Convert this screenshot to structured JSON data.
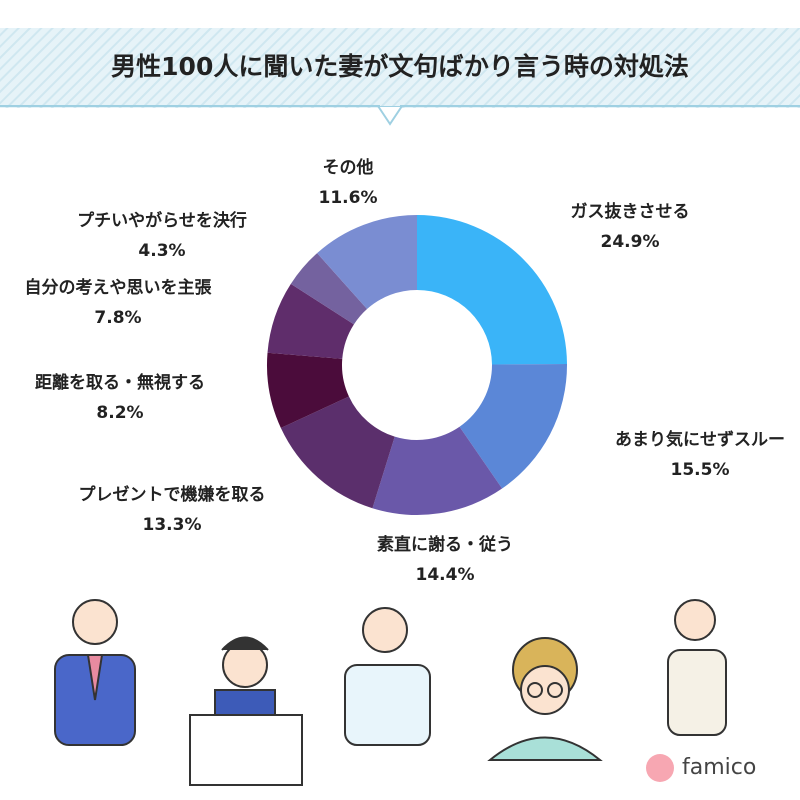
{
  "chart_data": {
    "type": "donut",
    "title": "男性100人に聞いた妻が文句ばかり言う時の対処法",
    "categories": [
      "ガス抜きさせる",
      "あまり気にせずスルー",
      "素直に謝る・従う",
      "プレゼントで機嫌を取る",
      "距離を取る・無視する",
      "自分の考えや思いを主張",
      "プチいやがらせを決行",
      "その他"
    ],
    "values": [
      24.9,
      15.5,
      14.4,
      13.3,
      8.2,
      7.8,
      4.3,
      11.6
    ],
    "value_labels": [
      "24.9%",
      "15.5%",
      "14.4%",
      "13.3%",
      "8.2%",
      "7.8%",
      "4.3%",
      "11.6%"
    ],
    "colors": [
      "#3ab4f8",
      "#5b87d7",
      "#6a58a9",
      "#5b2f6c",
      "#4b0c3b",
      "#5f2d6b",
      "#74629f",
      "#7a8dd2"
    ]
  },
  "logo": "famico"
}
